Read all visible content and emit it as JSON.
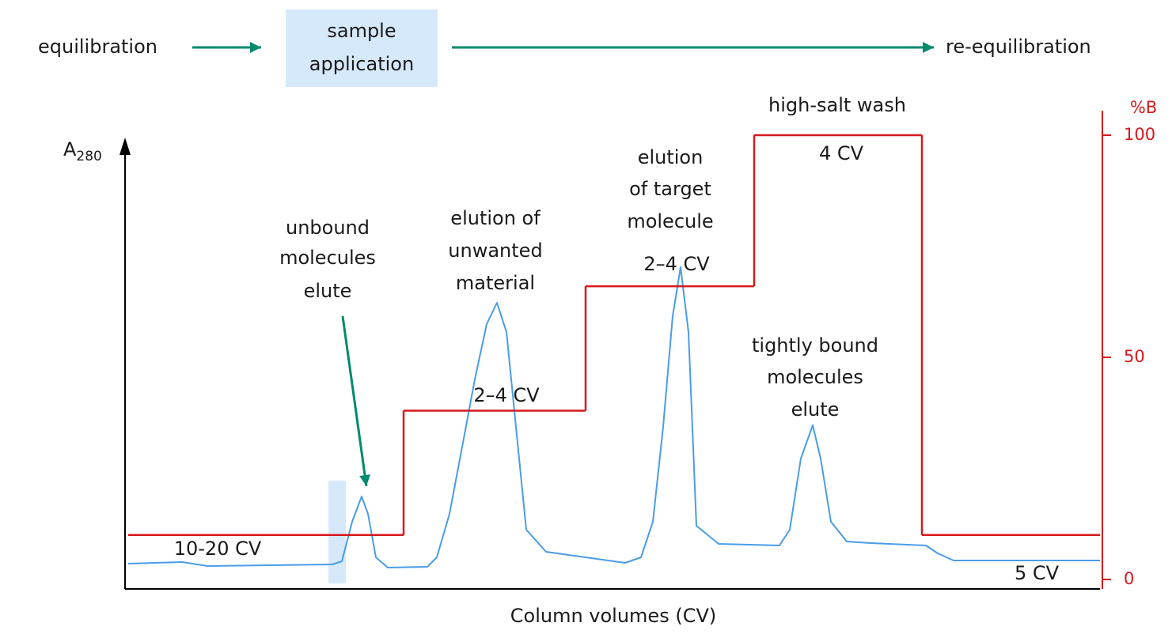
{
  "header": {
    "steps": [
      "equilibration",
      [
        "sample",
        "application"
      ],
      "re-equilibration"
    ]
  },
  "chart_data": {
    "type": "step",
    "axis_label": {
      "base": "A",
      "sub": "280"
    },
    "x_label": "Column volumes (CV)",
    "y2_label": "%B",
    "y2lim": [
      0,
      100
    ],
    "y2ticks": [
      0,
      50,
      100
    ],
    "gradient": {
      "color": "#d7191c",
      "values": [
        10,
        38,
        66,
        100,
        10
      ]
    },
    "step_labels": [
      "10-20 CV",
      "2–4 CV",
      "2–4 CV",
      "4 CV",
      "5 CV"
    ],
    "annotations": [
      [
        "unbound",
        "molecules",
        "elute"
      ],
      [
        "elution of",
        "unwanted",
        "material"
      ],
      [
        "elution",
        "of target",
        "molecule"
      ],
      [
        "high-salt wash"
      ],
      [
        "tightly bound",
        "molecules",
        "elute"
      ]
    ]
  }
}
